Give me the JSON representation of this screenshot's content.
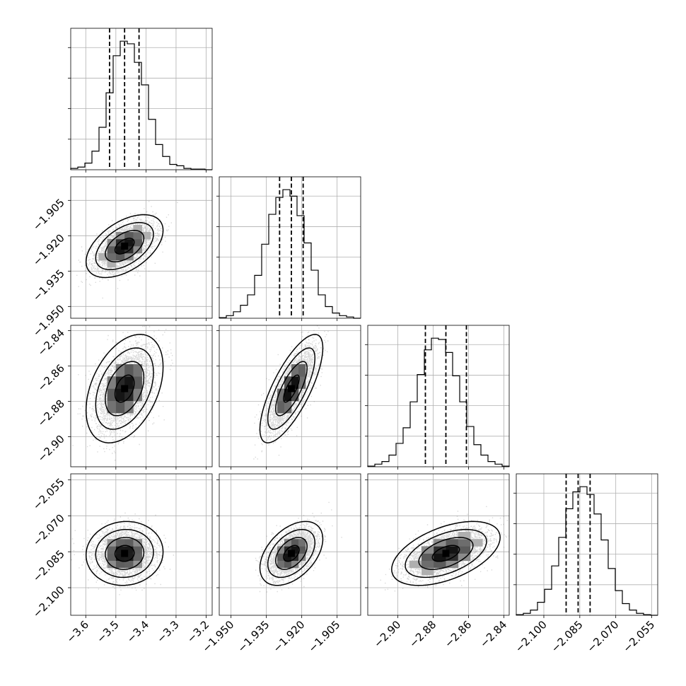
{
  "chart_data": {
    "type": "corner",
    "title": "",
    "parameters": [
      {
        "index": 0,
        "range": [
          -3.65,
          -3.18
        ],
        "median": -3.471,
        "quantiles": [
          -3.521,
          -3.471,
          -3.423
        ],
        "std": 0.048,
        "ticks": [
          -3.6,
          -3.5,
          -3.4,
          -3.3,
          -3.2
        ],
        "tick_labels": [
          "−3.6",
          "−3.5",
          "−3.4",
          "−3.3",
          "−3.2"
        ],
        "hist_values": [
          1,
          2,
          5,
          14,
          32,
          58,
          86,
          97,
          95,
          81,
          64,
          38,
          19,
          10,
          4,
          3,
          1,
          0.5,
          0.5,
          0
        ]
      },
      {
        "index": 1,
        "range": [
          -1.955,
          -1.895
        ],
        "median": -1.9244,
        "quantiles": [
          -1.9294,
          -1.9244,
          -1.9194
        ],
        "std": 0.005,
        "ticks": [
          -1.95,
          -1.935,
          -1.92,
          -1.905
        ],
        "tick_labels": [
          "−1.950",
          "−1.935",
          "−1.920",
          "−1.905"
        ],
        "hist_values": [
          0.5,
          2,
          5,
          10,
          18,
          33,
          57,
          80,
          93,
          99,
          94,
          79,
          58,
          37,
          18,
          9,
          4,
          2,
          1,
          0
        ]
      },
      {
        "index": 2,
        "range": [
          -2.917,
          -2.837
        ],
        "median": -2.8728,
        "quantiles": [
          -2.8844,
          -2.8728,
          -2.8612
        ],
        "std": 0.0115,
        "ticks": [
          -2.9,
          -2.88,
          -2.86,
          -2.84
        ],
        "tick_labels": [
          "−2.90",
          "−2.88",
          "−2.86",
          "−2.84"
        ],
        "hist_values": [
          0.5,
          2,
          4,
          9,
          18,
          30,
          50,
          71,
          90,
          99,
          98,
          88,
          70,
          50,
          31,
          17,
          9,
          4,
          2,
          0.5
        ]
      },
      {
        "index": 3,
        "range": [
          -2.1115,
          -2.0525
        ],
        "median": -2.0857,
        "quantiles": [
          -2.0907,
          -2.0857,
          -2.0807
        ],
        "std": 0.005,
        "ticks": [
          -2.1,
          -2.085,
          -2.07,
          -2.055
        ],
        "tick_labels": [
          "−2.100",
          "−2.085",
          "−2.070",
          "−2.055"
        ],
        "hist_values": [
          0.5,
          1.5,
          4,
          10,
          20,
          38,
          60,
          82,
          95,
          99,
          93,
          78,
          58,
          36,
          19,
          9,
          4,
          1.5,
          0.5,
          0
        ]
      }
    ],
    "correlations": [
      {
        "row": 1,
        "col": 0,
        "rho": 0.5
      },
      {
        "row": 2,
        "col": 0,
        "rho": 0.4
      },
      {
        "row": 2,
        "col": 1,
        "rho": 0.75
      },
      {
        "row": 3,
        "col": 0,
        "rho": 0.05
      },
      {
        "row": 3,
        "col": 1,
        "rho": 0.45
      },
      {
        "row": 3,
        "col": 2,
        "rho": 0.5
      }
    ],
    "contour_levels_sigma": [
      0.5,
      1.0,
      1.5,
      2.0
    ],
    "quantile_line_style": "dashed",
    "grid": true,
    "samples_per_panel": 3500
  },
  "colors": {
    "points": "#808080",
    "density_max": "#000000",
    "lines": "#000000",
    "grid": "#b0b0b0"
  }
}
